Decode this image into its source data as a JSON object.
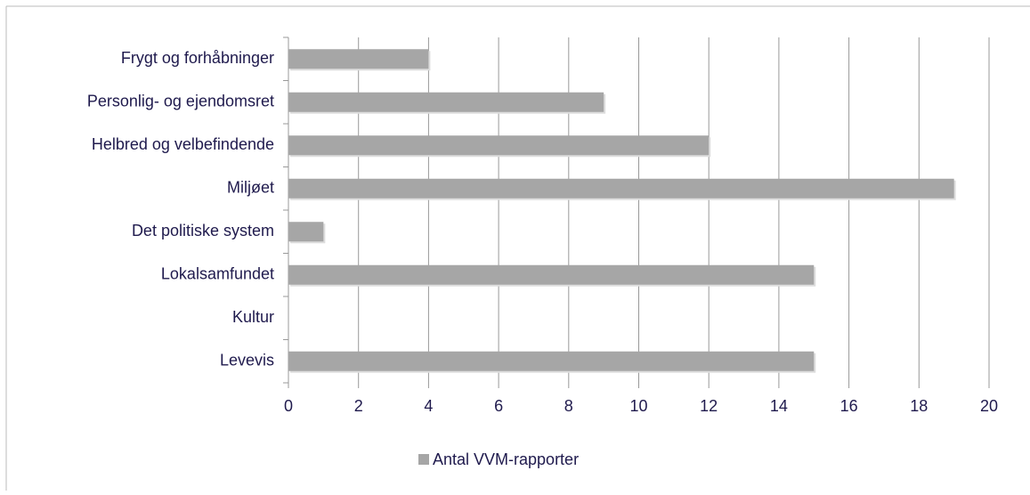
{
  "chart_data": {
    "type": "bar",
    "orientation": "horizontal",
    "categories": [
      "Frygt og forhåbninger",
      "Personlig- og ejendomsret",
      "Helbred og velbefindende",
      "Miljøet",
      "Det politiske system",
      "Lokalsamfundet",
      "Kultur",
      "Levevis"
    ],
    "series": [
      {
        "name": "Antal VVM-rapporter",
        "color": "#a6a6a6",
        "values": [
          4,
          9,
          12,
          19,
          1,
          15,
          0,
          15
        ]
      }
    ],
    "xlim": [
      0,
      20
    ],
    "xticks": [
      0,
      2,
      4,
      6,
      8,
      10,
      12,
      14,
      16,
      18,
      20
    ],
    "grid": true,
    "legend": "bottom"
  }
}
